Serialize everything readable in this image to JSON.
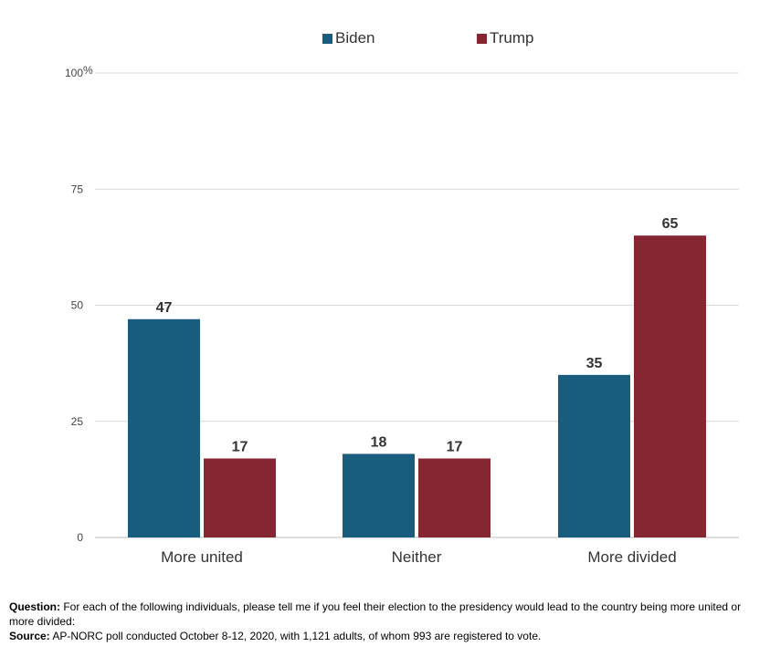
{
  "chart_data": {
    "type": "bar",
    "categories": [
      "More united",
      "Neither",
      "More divided"
    ],
    "series": [
      {
        "name": "Biden",
        "values": [
          47,
          18,
          35
        ],
        "color": "#185D7D"
      },
      {
        "name": "Trump",
        "values": [
          17,
          17,
          65
        ],
        "color": "#862633"
      }
    ],
    "y_ticks": [
      "0",
      "25",
      "50",
      "75",
      "100"
    ],
    "y_unit": "%",
    "ylim": [
      0,
      100
    ],
    "grid": true,
    "legend_position": "top-center"
  },
  "footnote": {
    "question_label": "Question:",
    "question_text": " For each of the following individuals, please tell me if you feel their election to the presidency would lead to the country being more united or more divided:",
    "source_label": "Source:",
    "source_text": " AP-NORC poll conducted October 8-12, 2020, with 1,121 adults, of whom 993 are registered to vote."
  }
}
